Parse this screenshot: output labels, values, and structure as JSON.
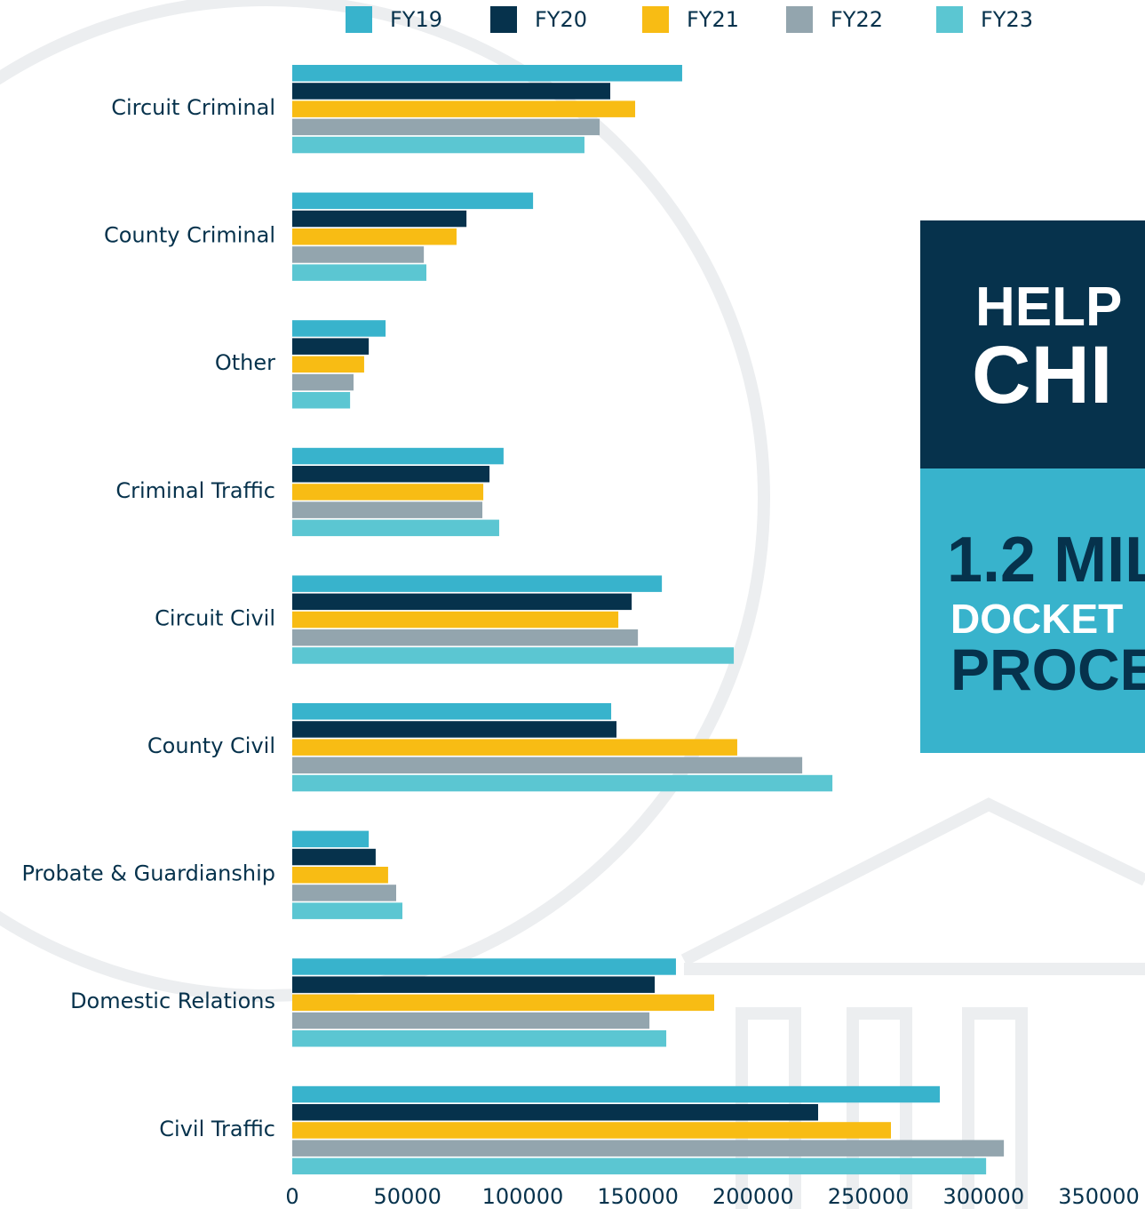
{
  "chart_data": {
    "type": "bar",
    "orientation": "horizontal",
    "categories": [
      "Circuit Criminal",
      "County Criminal",
      "Other",
      "Criminal Traffic",
      "Circuit Civil",
      "County Civil",
      "Probate & Guardianship",
      "Domestic Relations",
      "Civil Traffic"
    ],
    "series": [
      {
        "name": "FY19",
        "color": "#38b3cc",
        "values": [
          169200,
          104500,
          40500,
          91700,
          160400,
          138400,
          33200,
          166500,
          281000
        ]
      },
      {
        "name": "FY20",
        "color": "#06324c",
        "values": [
          138000,
          75600,
          33200,
          85600,
          147300,
          140700,
          36200,
          157300,
          228200
        ]
      },
      {
        "name": "FY21",
        "color": "#f8bc14",
        "values": [
          148800,
          71300,
          31200,
          82900,
          141500,
          193100,
          41600,
          183100,
          259800
        ]
      },
      {
        "name": "FY22",
        "color": "#93a5ae",
        "values": [
          133400,
          57100,
          26600,
          82500,
          150000,
          221300,
          45100,
          155000,
          308800
        ]
      },
      {
        "name": "FY23",
        "color": "#5bc6d2",
        "values": [
          126800,
          58200,
          25100,
          89800,
          191600,
          234400,
          47800,
          162300,
          301100
        ]
      }
    ],
    "xlim": [
      0,
      350000
    ],
    "xticks": [
      0,
      50000,
      100000,
      150000,
      200000,
      250000,
      300000,
      350000
    ],
    "grid": false,
    "legend": "top"
  },
  "panel": {
    "headline": [
      "HELP",
      "CHI"
    ],
    "stat": "1.2 MIL",
    "lines": [
      "DOCKET",
      "PROCE"
    ]
  }
}
